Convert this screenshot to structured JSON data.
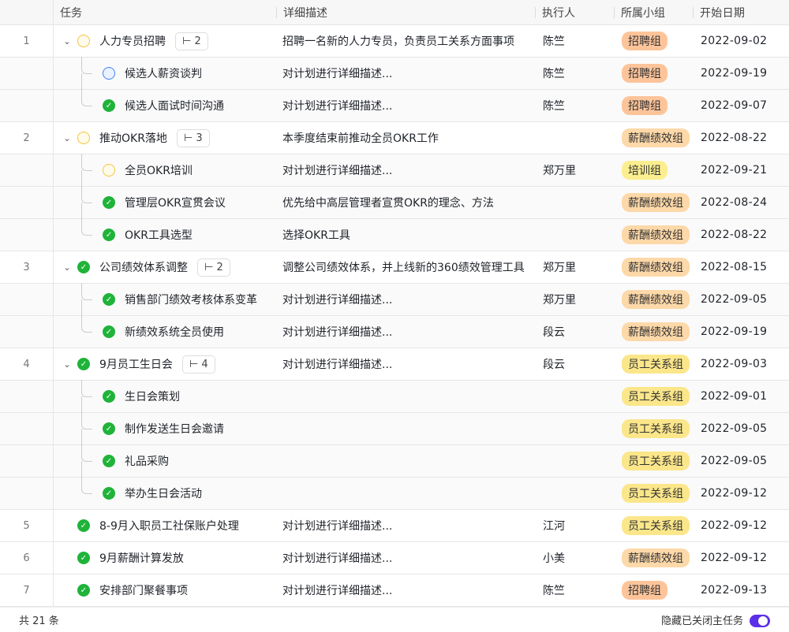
{
  "columns": [
    "任务",
    "详细描述",
    "执行人",
    "所属小组",
    "开始日期"
  ],
  "group_colors": {
    "招聘组": "#fdc49a",
    "薪酬绩效组": "#fdd8a8",
    "培训组": "#fbee8e",
    "员工关系组": "#fbe68a"
  },
  "rows": [
    {
      "index": "1",
      "level": 0,
      "expand": true,
      "status": "prog",
      "title": "人力专员招聘",
      "sub": "2",
      "desc": "招聘一名新的人力专员，负责员工关系方面事项",
      "assignee": "陈竺",
      "group": "招聘组",
      "date": "2022-09-02"
    },
    {
      "index": "",
      "level": 1,
      "status": "todo",
      "title": "候选人薪资谈判",
      "desc": "对计划进行详细描述...",
      "assignee": "陈竺",
      "group": "招聘组",
      "date": "2022-09-19"
    },
    {
      "index": "",
      "level": 1,
      "last": true,
      "status": "done",
      "title": "候选人面试时间沟通",
      "desc": "对计划进行详细描述...",
      "assignee": "陈竺",
      "group": "招聘组",
      "date": "2022-09-07"
    },
    {
      "index": "2",
      "level": 0,
      "expand": true,
      "status": "prog",
      "title": "推动OKR落地",
      "sub": "3",
      "desc": "本季度结束前推动全员OKR工作",
      "assignee": "",
      "group": "薪酬绩效组",
      "date": "2022-08-22"
    },
    {
      "index": "",
      "level": 1,
      "status": "prog",
      "title": "全员OKR培训",
      "desc": "对计划进行详细描述...",
      "assignee": "郑万里",
      "group": "培训组",
      "date": "2022-09-21"
    },
    {
      "index": "",
      "level": 1,
      "status": "done",
      "title": "管理层OKR宣贯会议",
      "desc": "优先给中高层管理者宣贯OKR的理念、方法",
      "assignee": "",
      "group": "薪酬绩效组",
      "date": "2022-08-24"
    },
    {
      "index": "",
      "level": 1,
      "last": true,
      "status": "done",
      "title": "OKR工具选型",
      "desc": "选择OKR工具",
      "assignee": "",
      "group": "薪酬绩效组",
      "date": "2022-08-22"
    },
    {
      "index": "3",
      "level": 0,
      "expand": true,
      "status": "done",
      "title": "公司绩效体系调整",
      "sub": "2",
      "desc": "调整公司绩效体系，并上线新的360绩效管理工具",
      "assignee": "郑万里",
      "group": "薪酬绩效组",
      "date": "2022-08-15"
    },
    {
      "index": "",
      "level": 1,
      "status": "done",
      "title": "销售部门绩效考核体系变革",
      "desc": "对计划进行详细描述...",
      "assignee": "郑万里",
      "group": "薪酬绩效组",
      "date": "2022-09-05"
    },
    {
      "index": "",
      "level": 1,
      "last": true,
      "status": "done",
      "title": "新绩效系统全员使用",
      "desc": "对计划进行详细描述...",
      "assignee": "段云",
      "group": "薪酬绩效组",
      "date": "2022-09-19"
    },
    {
      "index": "4",
      "level": 0,
      "expand": true,
      "status": "done",
      "title": "9月员工生日会",
      "sub": "4",
      "desc": "对计划进行详细描述...",
      "assignee": "段云",
      "group": "员工关系组",
      "date": "2022-09-03"
    },
    {
      "index": "",
      "level": 1,
      "status": "done",
      "title": "生日会策划",
      "desc": "",
      "assignee": "",
      "group": "员工关系组",
      "date": "2022-09-01"
    },
    {
      "index": "",
      "level": 1,
      "status": "done",
      "title": "制作发送生日会邀请",
      "desc": "",
      "assignee": "",
      "group": "员工关系组",
      "date": "2022-09-05"
    },
    {
      "index": "",
      "level": 1,
      "status": "done",
      "title": "礼品采购",
      "desc": "",
      "assignee": "",
      "group": "员工关系组",
      "date": "2022-09-05"
    },
    {
      "index": "",
      "level": 1,
      "last": true,
      "status": "done",
      "title": "举办生日会活动",
      "desc": "",
      "assignee": "",
      "group": "员工关系组",
      "date": "2022-09-12"
    },
    {
      "index": "5",
      "level": 0,
      "status": "done",
      "title": "8-9月入职员工社保账户处理",
      "desc": "对计划进行详细描述...",
      "assignee": "江河",
      "group": "员工关系组",
      "date": "2022-09-12"
    },
    {
      "index": "6",
      "level": 0,
      "status": "done",
      "title": "9月薪酬计算发放",
      "desc": "对计划进行详细描述...",
      "assignee": "小美",
      "group": "薪酬绩效组",
      "date": "2022-09-12"
    },
    {
      "index": "7",
      "level": 0,
      "status": "done",
      "title": "安排部门聚餐事项",
      "desc": "对计划进行详细描述...",
      "assignee": "陈竺",
      "group": "招聘组",
      "date": "2022-09-13"
    }
  ],
  "footer": {
    "total": "共 21 条",
    "toggle_label": "隐藏已关闭主任务",
    "toggle_on": true
  }
}
